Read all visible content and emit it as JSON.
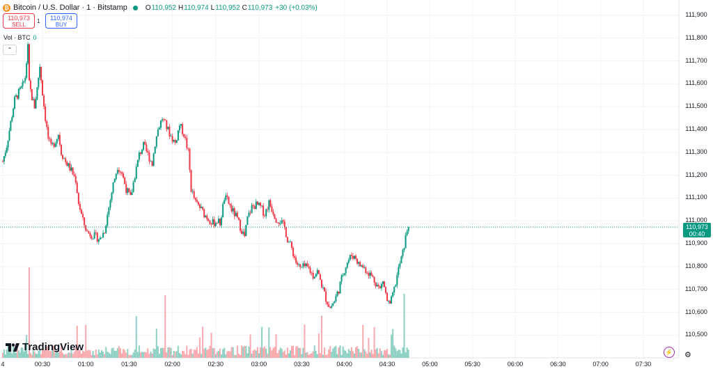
{
  "symbol": {
    "coin_glyph": "₿",
    "title": "Bitcoin / U.S. Dollar · 1 · Bitstamp",
    "ohlc": [
      {
        "k": "O",
        "v": "110,952"
      },
      {
        "k": "H",
        "v": "110,974"
      },
      {
        "k": "L",
        "v": "110,952"
      },
      {
        "k": "C",
        "v": "110,973"
      }
    ],
    "change": "+30 (+0.03%)"
  },
  "trade": {
    "sell_price": "110,973",
    "sell_label": "SELL",
    "spread": "1",
    "buy_price": "110,974",
    "buy_label": "BUY"
  },
  "volume": {
    "label": "Vol · BTC",
    "value": "0"
  },
  "collapse_glyph": "⌃",
  "brand": "TradingView",
  "price_axis": [
    {
      "label": "111,900",
      "price": 111900
    },
    {
      "label": "111,800",
      "price": 111800
    },
    {
      "label": "111,700",
      "price": 111700
    },
    {
      "label": "111,600",
      "price": 111600
    },
    {
      "label": "111,500",
      "price": 111500
    },
    {
      "label": "111,400",
      "price": 111400
    },
    {
      "label": "111,300",
      "price": 111300
    },
    {
      "label": "111,200",
      "price": 111200
    },
    {
      "label": "111,100",
      "price": 111100
    },
    {
      "label": "111,000",
      "price": 111000
    },
    {
      "label": "110,900",
      "price": 110900
    },
    {
      "label": "110,800",
      "price": 110800
    },
    {
      "label": "110,700",
      "price": 110700
    },
    {
      "label": "110,600",
      "price": 110600
    },
    {
      "label": "110,500",
      "price": 110500
    }
  ],
  "time_axis": [
    {
      "label": "4",
      "minute": 0
    },
    {
      "label": "00:30",
      "minute": 30
    },
    {
      "label": "01:00",
      "minute": 60
    },
    {
      "label": "01:30",
      "minute": 90
    },
    {
      "label": "02:00",
      "minute": 120
    },
    {
      "label": "02:30",
      "minute": 150
    },
    {
      "label": "03:00",
      "minute": 180
    },
    {
      "label": "03:30",
      "minute": 210
    },
    {
      "label": "04:00",
      "minute": 240
    },
    {
      "label": "04:30",
      "minute": 270
    },
    {
      "label": "05:00",
      "minute": 300
    },
    {
      "label": "05:30",
      "minute": 330
    },
    {
      "label": "06:00",
      "minute": 360
    },
    {
      "label": "06:30",
      "minute": 390
    },
    {
      "label": "07:00",
      "minute": 420
    },
    {
      "label": "07:30",
      "minute": 450
    }
  ],
  "current": {
    "price": 110973,
    "price_label": "110,973",
    "countdown": "00:40"
  },
  "colors": {
    "up": "#089981",
    "down": "#f23645",
    "up_vol": "#8ccfc3",
    "down_vol": "#f9a9ad",
    "grid": "#f0f3fa",
    "accent": "#089981"
  },
  "icons": {
    "bolt": "⚡",
    "gear": "⚙"
  },
  "chart_data": {
    "type": "candlestick",
    "price_range": [
      110480,
      111930
    ],
    "close_path": [
      [
        0,
        111260
      ],
      [
        3,
        111330
      ],
      [
        6,
        111430
      ],
      [
        9,
        111530
      ],
      [
        12,
        111560
      ],
      [
        15,
        111590
      ],
      [
        17,
        111630
      ],
      [
        19,
        111760
      ],
      [
        20,
        111600
      ],
      [
        22,
        111540
      ],
      [
        24,
        111500
      ],
      [
        26,
        111580
      ],
      [
        28,
        111680
      ],
      [
        30,
        111560
      ],
      [
        32,
        111450
      ],
      [
        34,
        111360
      ],
      [
        36,
        111320
      ],
      [
        39,
        111350
      ],
      [
        41,
        111380
      ],
      [
        43,
        111300
      ],
      [
        46,
        111260
      ],
      [
        50,
        111220
      ],
      [
        53,
        111180
      ],
      [
        55,
        111080
      ],
      [
        58,
        111000
      ],
      [
        61,
        110950
      ],
      [
        64,
        110940
      ],
      [
        67,
        110930
      ],
      [
        70,
        110920
      ],
      [
        73,
        110960
      ],
      [
        76,
        111060
      ],
      [
        79,
        111160
      ],
      [
        82,
        111240
      ],
      [
        85,
        111210
      ],
      [
        88,
        111140
      ],
      [
        91,
        111100
      ],
      [
        94,
        111200
      ],
      [
        97,
        111290
      ],
      [
        100,
        111330
      ],
      [
        103,
        111290
      ],
      [
        106,
        111250
      ],
      [
        108,
        111340
      ],
      [
        110,
        111400
      ],
      [
        113,
        111450
      ],
      [
        116,
        111410
      ],
      [
        119,
        111370
      ],
      [
        122,
        111340
      ],
      [
        125,
        111420
      ],
      [
        128,
        111380
      ],
      [
        131,
        111300
      ],
      [
        133,
        111140
      ],
      [
        136,
        111080
      ],
      [
        139,
        111060
      ],
      [
        142,
        111030
      ],
      [
        145,
        111010
      ],
      [
        148,
        110990
      ],
      [
        151,
        111000
      ],
      [
        153,
        110990
      ],
      [
        156,
        111100
      ],
      [
        158,
        111090
      ],
      [
        161,
        111050
      ],
      [
        164,
        111020
      ],
      [
        166,
        110990
      ],
      [
        168,
        110960
      ],
      [
        170,
        110930
      ],
      [
        172,
        111010
      ],
      [
        175,
        111060
      ],
      [
        178,
        111070
      ],
      [
        181,
        111060
      ],
      [
        184,
        111030
      ],
      [
        187,
        111080
      ],
      [
        190,
        111040
      ],
      [
        192,
        111010
      ],
      [
        195,
        111000
      ],
      [
        198,
        110970
      ],
      [
        200,
        110920
      ],
      [
        203,
        110880
      ],
      [
        206,
        110820
      ],
      [
        209,
        110790
      ],
      [
        212,
        110800
      ],
      [
        215,
        110790
      ],
      [
        218,
        110760
      ],
      [
        221,
        110780
      ],
      [
        224,
        110720
      ],
      [
        227,
        110660
      ],
      [
        230,
        110620
      ],
      [
        233,
        110650
      ],
      [
        236,
        110700
      ],
      [
        239,
        110770
      ],
      [
        242,
        110820
      ],
      [
        245,
        110850
      ],
      [
        248,
        110840
      ],
      [
        250,
        110810
      ],
      [
        253,
        110800
      ],
      [
        256,
        110780
      ],
      [
        259,
        110760
      ],
      [
        262,
        110730
      ],
      [
        265,
        110700
      ],
      [
        267,
        110740
      ],
      [
        270,
        110650
      ],
      [
        272,
        110630
      ],
      [
        275,
        110700
      ],
      [
        278,
        110790
      ],
      [
        281,
        110860
      ],
      [
        284,
        110960
      ],
      [
        285,
        110973
      ]
    ],
    "anchors": [
      {
        "minute": 0,
        "x": 4
      },
      {
        "minute": 30,
        "x": 61
      },
      {
        "minute": 180,
        "x": 372
      },
      {
        "minute": 450,
        "x": 924
      }
    ]
  }
}
